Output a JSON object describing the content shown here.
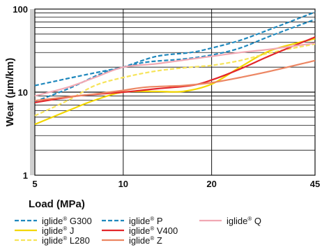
{
  "chart_data": {
    "type": "line",
    "xlabel": "Load (MPa)",
    "ylabel": "Wear (µm/km)",
    "x_scale": "log",
    "y_scale": "log",
    "xlim": [
      5,
      45
    ],
    "ylim": [
      1,
      100
    ],
    "x_ticks": [
      5,
      10,
      20,
      45
    ],
    "x_tick_labels": [
      "5",
      "10",
      "20",
      "45"
    ],
    "y_ticks": [
      1,
      10,
      100
    ],
    "y_tick_labels": [
      "1",
      "10",
      "100"
    ],
    "grid": true,
    "legend_position": "bottom",
    "series": [
      {
        "name_base": "iglide",
        "name_reg": "®",
        "name_suffix": "G300",
        "color": "#1f88bd",
        "dash": "dashed",
        "points": [
          [
            5,
            7.7
          ],
          [
            6.5,
            11
          ],
          [
            8.5,
            17
          ],
          [
            10,
            20
          ],
          [
            13,
            27
          ],
          [
            17,
            30
          ],
          [
            20,
            34
          ],
          [
            25,
            42
          ],
          [
            32,
            58
          ],
          [
            45,
            92
          ]
        ]
      },
      {
        "name_base": "iglide",
        "name_reg": "®",
        "name_suffix": "J",
        "color": "#f2d600",
        "dash": "solid",
        "points": [
          [
            5,
            4.1
          ],
          [
            6.5,
            6
          ],
          [
            8,
            8
          ],
          [
            10,
            10
          ],
          [
            13,
            10.2
          ],
          [
            16,
            10.2
          ],
          [
            20,
            12.5
          ],
          [
            25,
            20
          ],
          [
            32,
            32
          ],
          [
            45,
            44
          ]
        ]
      },
      {
        "name_base": "iglide",
        "name_reg": "®",
        "name_suffix": "L280",
        "color": "#f6e45a",
        "dash": "dashed",
        "points": [
          [
            5,
            5.2
          ],
          [
            6.5,
            8
          ],
          [
            8,
            12
          ],
          [
            10,
            15
          ],
          [
            13,
            18
          ],
          [
            17,
            20
          ],
          [
            20,
            21
          ],
          [
            25,
            24
          ],
          [
            32,
            30
          ],
          [
            45,
            38
          ]
        ]
      },
      {
        "name_base": "iglide",
        "name_reg": "®",
        "name_suffix": "P",
        "color": "#1f88bd",
        "dash": "dashed",
        "points": [
          [
            5,
            12
          ],
          [
            7,
            15.5
          ],
          [
            10,
            20
          ],
          [
            12,
            23
          ],
          [
            16,
            25
          ],
          [
            20,
            28
          ],
          [
            25,
            34
          ],
          [
            32,
            48
          ],
          [
            45,
            75
          ]
        ]
      },
      {
        "name_base": "iglide",
        "name_reg": "®",
        "name_suffix": "V400",
        "color": "#e3262b",
        "dash": "solid",
        "points": [
          [
            5,
            7.5
          ],
          [
            7,
            9
          ],
          [
            10,
            10
          ],
          [
            13,
            11
          ],
          [
            17,
            12
          ],
          [
            20,
            14
          ],
          [
            25,
            19
          ],
          [
            32,
            28
          ],
          [
            45,
            46
          ]
        ]
      },
      {
        "name_base": "iglide",
        "name_reg": "®",
        "name_suffix": "Z",
        "color": "#ec8663",
        "dash": "solid",
        "points": [
          [
            5,
            7.9
          ],
          [
            6.5,
            8.8
          ],
          [
            8,
            9.5
          ],
          [
            10,
            10.5
          ],
          [
            12,
            11.5
          ],
          [
            16,
            12
          ],
          [
            20,
            13
          ],
          [
            25,
            15
          ],
          [
            32,
            18
          ],
          [
            45,
            24
          ]
        ]
      },
      {
        "name_base": "iglide",
        "name_reg": "®",
        "name_suffix": "Q",
        "color": "#f1a8b3",
        "dash": "solid",
        "points": [
          [
            5,
            9
          ],
          [
            6.5,
            11.5
          ],
          [
            8,
            15
          ],
          [
            10,
            20
          ],
          [
            13,
            22
          ],
          [
            17,
            25
          ],
          [
            20,
            27
          ],
          [
            25,
            30
          ],
          [
            32,
            33
          ],
          [
            45,
            39
          ]
        ]
      }
    ]
  }
}
